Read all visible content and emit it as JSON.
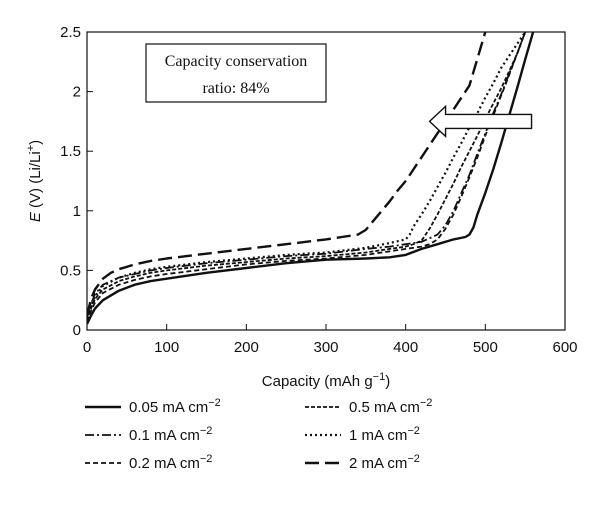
{
  "chart_data": {
    "type": "line",
    "title": "",
    "xlabel": "Capacity (mAh g",
    "xlabel_sup": "−1",
    "xlabel_end": ")",
    "ylabel_italic": "E",
    "ylabel_rest": " (V) (Li/Li",
    "ylabel_sup": "+",
    "ylabel_end": ")",
    "xlim": [
      0,
      600
    ],
    "ylim": [
      0,
      2.5
    ],
    "xticks": [
      "0",
      "100",
      "200",
      "300",
      "400",
      "500",
      "600"
    ],
    "yticks": [
      "0",
      "0.5",
      "1",
      "1.5",
      "2",
      "2.5"
    ],
    "grid": false,
    "legend_position": "bottom",
    "annotation": {
      "line1": "Capacity conservation",
      "line2": "ratio: 84%"
    },
    "arrow": {
      "direction": "left",
      "from": [
        558,
        1.75
      ],
      "to": [
        430,
        1.75
      ]
    },
    "series": [
      {
        "name": "0.05 mA cm",
        "unit_sup": "−2",
        "dash": "",
        "stroke_width": 2.4,
        "x": [
          0,
          5,
          10,
          20,
          40,
          60,
          80,
          100,
          150,
          200,
          250,
          300,
          350,
          380,
          400,
          420,
          440,
          460,
          475,
          480,
          485,
          490,
          500,
          510,
          520,
          530,
          540,
          550,
          560
        ],
        "y": [
          0.05,
          0.12,
          0.18,
          0.25,
          0.33,
          0.38,
          0.41,
          0.43,
          0.48,
          0.52,
          0.56,
          0.59,
          0.6,
          0.61,
          0.63,
          0.68,
          0.72,
          0.76,
          0.78,
          0.8,
          0.86,
          0.97,
          1.15,
          1.35,
          1.57,
          1.8,
          2.03,
          2.27,
          2.5
        ]
      },
      {
        "name": "0.1 mA cm",
        "unit_sup": "−2",
        "dash": "9 3 2 3",
        "stroke_width": 1.8,
        "x": [
          0,
          5,
          10,
          20,
          40,
          60,
          80,
          100,
          150,
          200,
          250,
          300,
          350,
          380,
          400,
          420,
          430,
          440,
          450,
          460,
          470,
          480,
          490,
          500,
          510,
          520,
          530,
          540,
          550
        ],
        "y": [
          0.1,
          0.22,
          0.3,
          0.38,
          0.44,
          0.47,
          0.5,
          0.52,
          0.56,
          0.59,
          0.62,
          0.64,
          0.68,
          0.7,
          0.72,
          0.74,
          0.77,
          0.8,
          0.88,
          1.0,
          1.15,
          1.3,
          1.48,
          1.65,
          1.82,
          1.98,
          2.15,
          2.32,
          2.5
        ]
      },
      {
        "name": "0.2 mA cm",
        "unit_sup": "−2",
        "dash": "5 3",
        "stroke_width": 1.8,
        "x": [
          0,
          5,
          10,
          20,
          40,
          60,
          80,
          100,
          150,
          200,
          250,
          300,
          350,
          380,
          400,
          420,
          430,
          440,
          450,
          460,
          470,
          480,
          490,
          500,
          510,
          520,
          530,
          540,
          550
        ],
        "y": [
          0.07,
          0.16,
          0.23,
          0.31,
          0.38,
          0.42,
          0.45,
          0.47,
          0.51,
          0.55,
          0.58,
          0.6,
          0.63,
          0.66,
          0.68,
          0.7,
          0.72,
          0.76,
          0.85,
          0.97,
          1.12,
          1.28,
          1.45,
          1.63,
          1.8,
          1.97,
          2.14,
          2.32,
          2.5
        ]
      },
      {
        "name": "0.5 mA cm",
        "unit_sup": "−2",
        "dash": "4 2",
        "stroke_width": 1.8,
        "x": [
          0,
          5,
          10,
          20,
          40,
          60,
          80,
          100,
          150,
          200,
          250,
          300,
          350,
          380,
          400,
          410,
          420,
          430,
          440,
          450,
          460,
          470,
          480,
          490,
          500,
          510,
          520,
          530,
          540,
          550
        ],
        "y": [
          0.08,
          0.18,
          0.26,
          0.34,
          0.41,
          0.45,
          0.48,
          0.5,
          0.54,
          0.57,
          0.6,
          0.62,
          0.65,
          0.68,
          0.7,
          0.72,
          0.75,
          0.85,
          0.97,
          1.1,
          1.23,
          1.37,
          1.5,
          1.63,
          1.77,
          1.9,
          2.03,
          2.17,
          2.32,
          2.5
        ]
      },
      {
        "name": "1 mA cm",
        "unit_sup": "−2",
        "dash": "2 3",
        "stroke_width": 2.2,
        "x": [
          0,
          5,
          10,
          20,
          40,
          60,
          80,
          100,
          150,
          200,
          250,
          300,
          350,
          380,
          400,
          405,
          410,
          420,
          430,
          440,
          450,
          460,
          470,
          480,
          490,
          500,
          510,
          520,
          530,
          540,
          550
        ],
        "y": [
          0.1,
          0.2,
          0.28,
          0.37,
          0.44,
          0.48,
          0.51,
          0.53,
          0.57,
          0.6,
          0.63,
          0.65,
          0.69,
          0.73,
          0.76,
          0.8,
          0.87,
          0.97,
          1.08,
          1.2,
          1.32,
          1.45,
          1.57,
          1.7,
          1.82,
          1.95,
          2.07,
          2.2,
          2.3,
          2.4,
          2.5
        ]
      },
      {
        "name": "2 mA cm",
        "unit_sup": "−2",
        "dash": "14 6",
        "stroke_width": 2.4,
        "x": [
          0,
          5,
          10,
          20,
          30,
          40,
          60,
          80,
          100,
          150,
          200,
          250,
          300,
          320,
          340,
          350,
          360,
          370,
          380,
          390,
          400,
          420,
          440,
          460,
          480,
          500
        ],
        "y": [
          0.12,
          0.26,
          0.34,
          0.43,
          0.48,
          0.51,
          0.55,
          0.58,
          0.6,
          0.64,
          0.68,
          0.72,
          0.76,
          0.78,
          0.8,
          0.84,
          0.92,
          1.0,
          1.08,
          1.17,
          1.25,
          1.45,
          1.65,
          1.85,
          2.05,
          2.5
        ]
      }
    ]
  }
}
